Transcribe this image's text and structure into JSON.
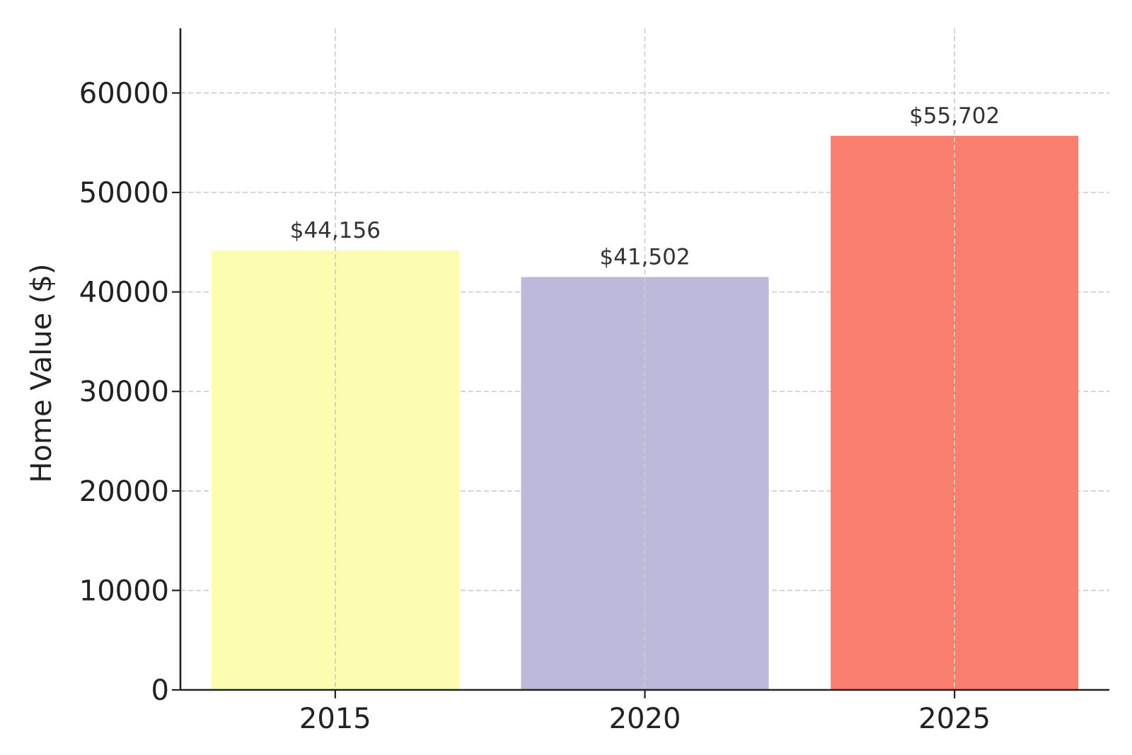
{
  "chart_data": {
    "type": "bar",
    "categories": [
      "2015",
      "2020",
      "2025"
    ],
    "values": [
      44156,
      41502,
      55702
    ],
    "value_labels": [
      "$44,156",
      "$41,502",
      "$55,702"
    ],
    "colors": [
      "#fdfdb1",
      "#bdb9da",
      "#fa7f71"
    ],
    "title": "",
    "xlabel": "",
    "ylabel": "Home Value ($)",
    "ylim": [
      0,
      66500
    ],
    "yticks": [
      0,
      10000,
      20000,
      30000,
      40000,
      50000,
      60000
    ],
    "ytick_labels": [
      "0",
      "10000",
      "20000",
      "30000",
      "40000",
      "50000",
      "60000"
    ],
    "grid": true,
    "legend": false
  }
}
